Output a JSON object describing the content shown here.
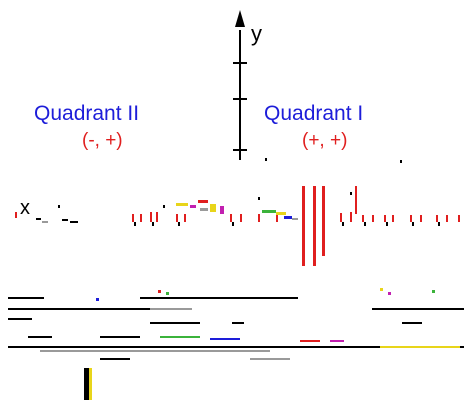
{
  "axis_y_label": "y",
  "axis_x_label": "x",
  "quadrants": [
    {
      "name": "Quadrant II",
      "signs": "(-, +)"
    },
    {
      "name": "Quadrant I",
      "signs": "(+, +)"
    }
  ],
  "colors": {
    "quadrant_name": "#1d1dd9",
    "quadrant_signs": "#e01f1f",
    "axis": "#000000",
    "artifact_red": "#e01f1f",
    "artifact_magenta": "#c21fb0",
    "artifact_yellow": "#e8d51a",
    "artifact_green": "#3bb33b",
    "artifact_blue": "#1d1dd9",
    "artifact_gray": "#9a9a9a"
  }
}
